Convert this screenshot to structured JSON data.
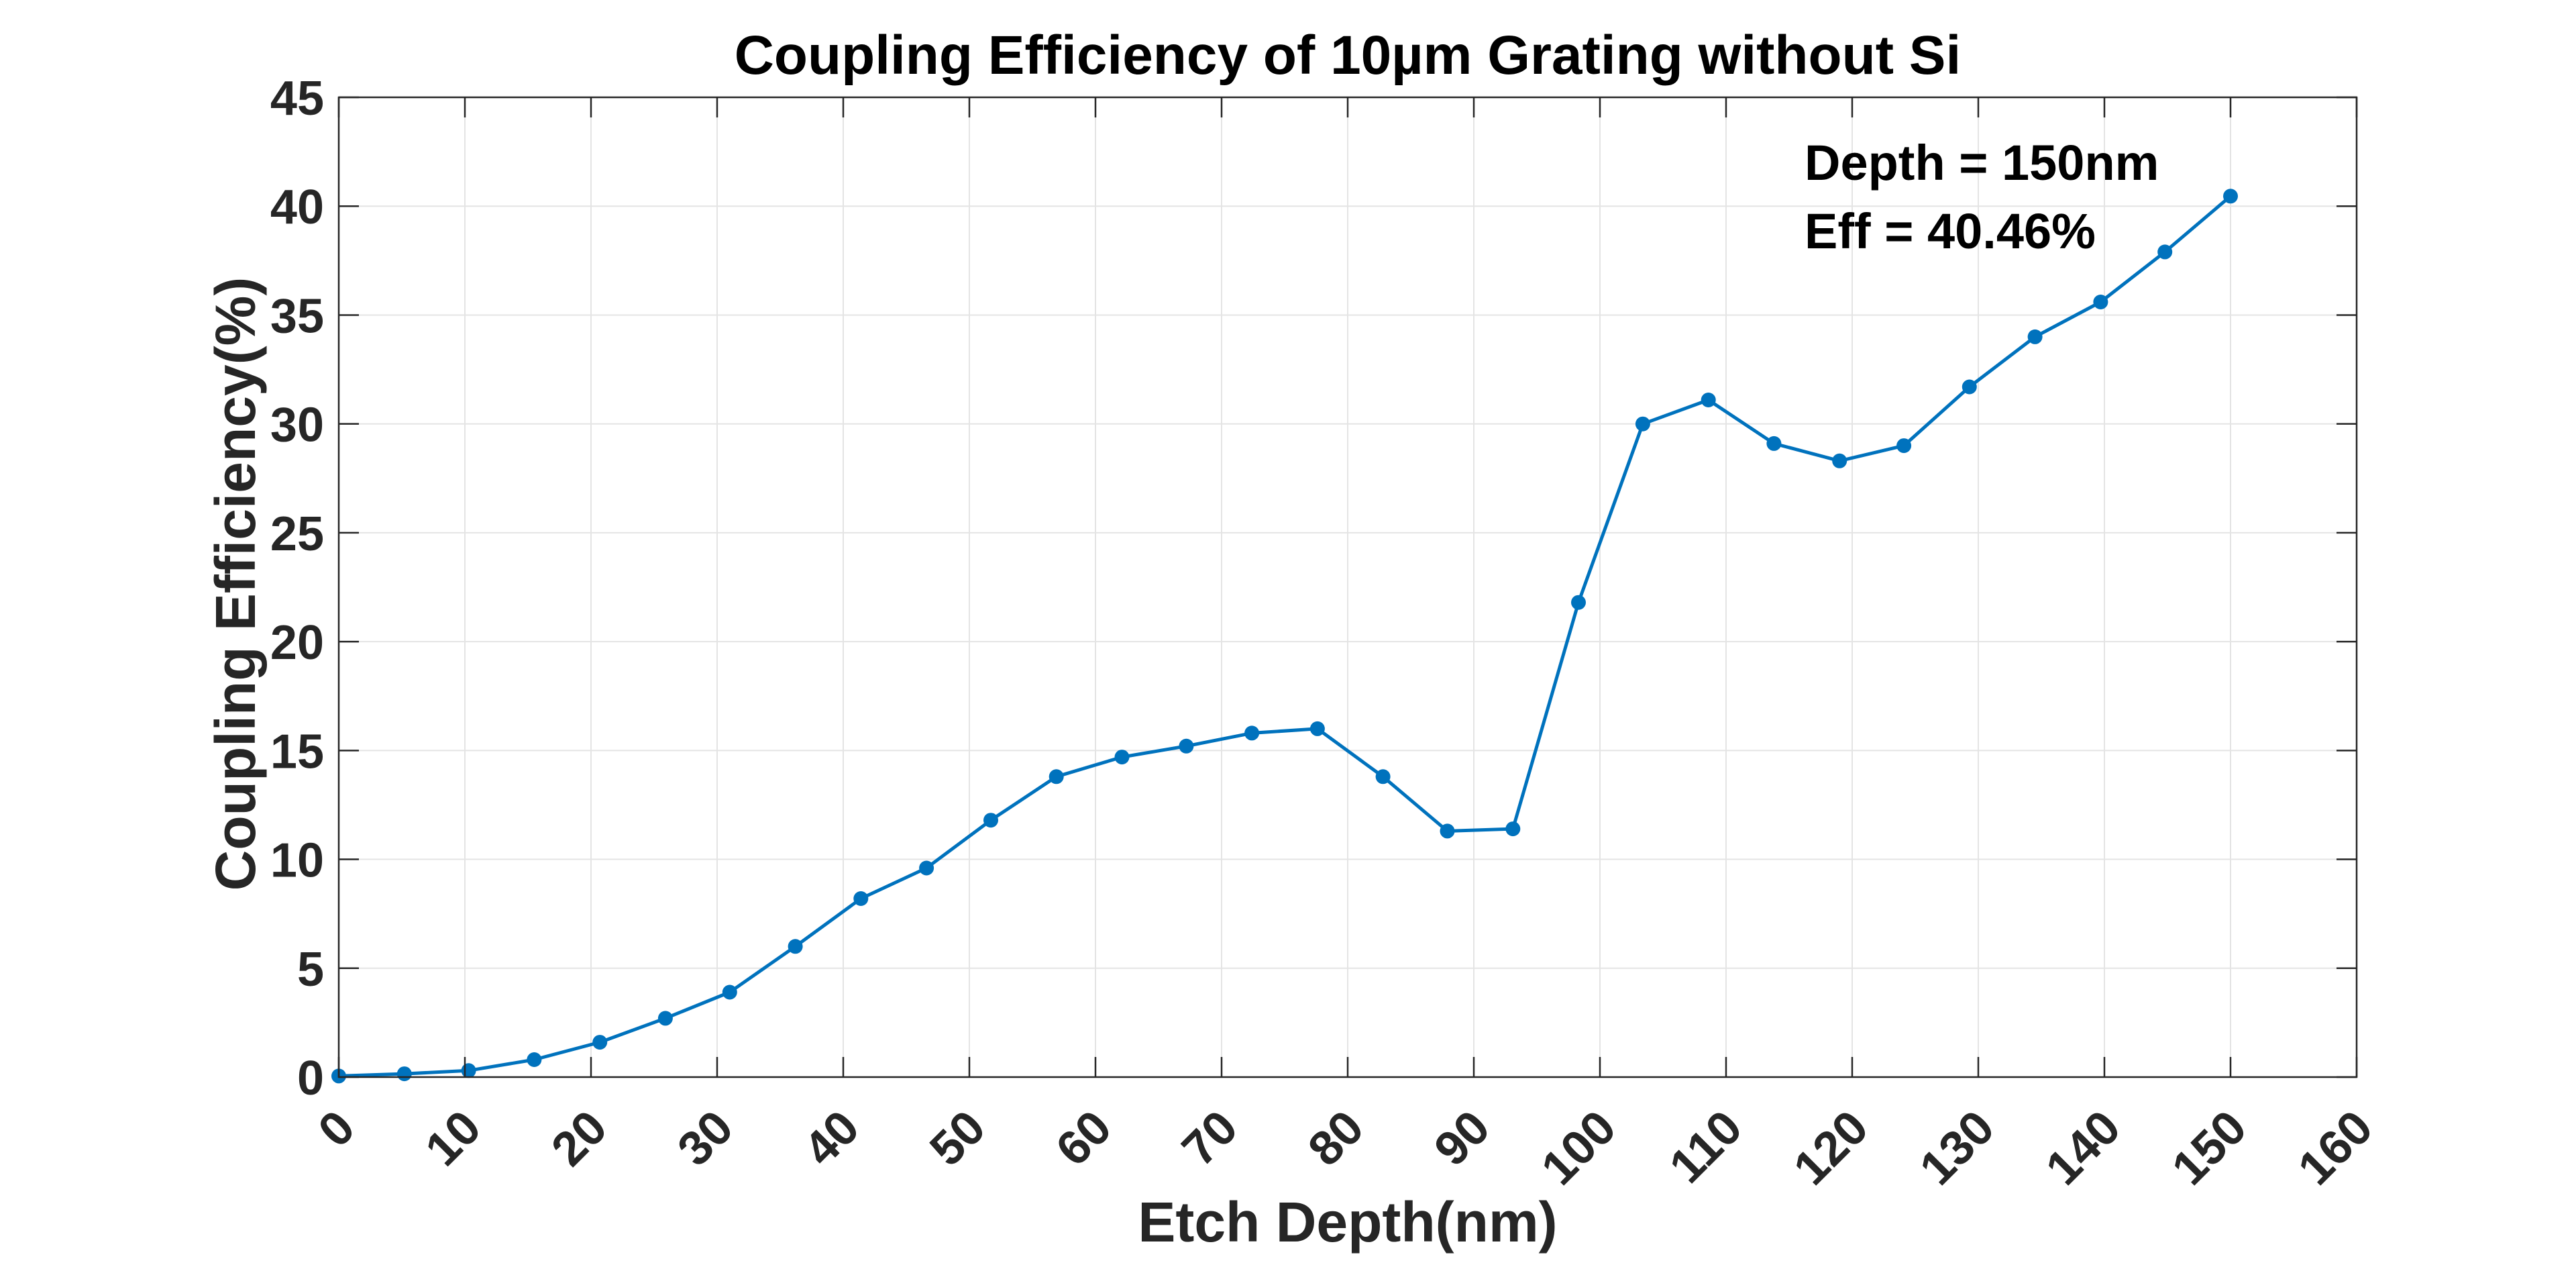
{
  "chart_data": {
    "type": "line",
    "title": "Coupling Efficiency of 10µm Grating without Si",
    "xlabel": "Etch Depth(nm)",
    "ylabel": "Coupling Efficiency(%)",
    "xlim": [
      0,
      160
    ],
    "ylim": [
      0,
      45
    ],
    "xticks": [
      0,
      10,
      20,
      30,
      40,
      50,
      60,
      70,
      80,
      90,
      100,
      110,
      120,
      130,
      140,
      150,
      160
    ],
    "yticks": [
      0,
      5,
      10,
      15,
      20,
      25,
      30,
      35,
      40,
      45
    ],
    "grid": true,
    "legend": "none",
    "series_color": "#0072bd",
    "series": [
      {
        "x": [
          0,
          5.2,
          10.3,
          15.5,
          20.7,
          25.9,
          31.0,
          36.2,
          41.4,
          46.6,
          51.7,
          56.9,
          62.1,
          67.2,
          72.4,
          77.6,
          82.8,
          87.9,
          93.1,
          98.3,
          103.4,
          108.6,
          113.8,
          119.0,
          124.1,
          129.3,
          134.5,
          139.7,
          144.8,
          150.0
        ],
        "y": [
          0.05,
          0.15,
          0.3,
          0.8,
          1.6,
          2.7,
          3.9,
          6.0,
          8.2,
          9.6,
          11.8,
          13.8,
          14.7,
          15.2,
          15.8,
          16.0,
          13.8,
          11.3,
          11.4,
          21.8,
          30.0,
          31.1,
          29.1,
          28.3,
          29.0,
          31.7,
          34.0,
          35.6,
          37.9,
          40.46
        ]
      }
    ],
    "annotation": {
      "line1": "Depth = 150nm",
      "line2": "Eff = 40.46%"
    }
  }
}
